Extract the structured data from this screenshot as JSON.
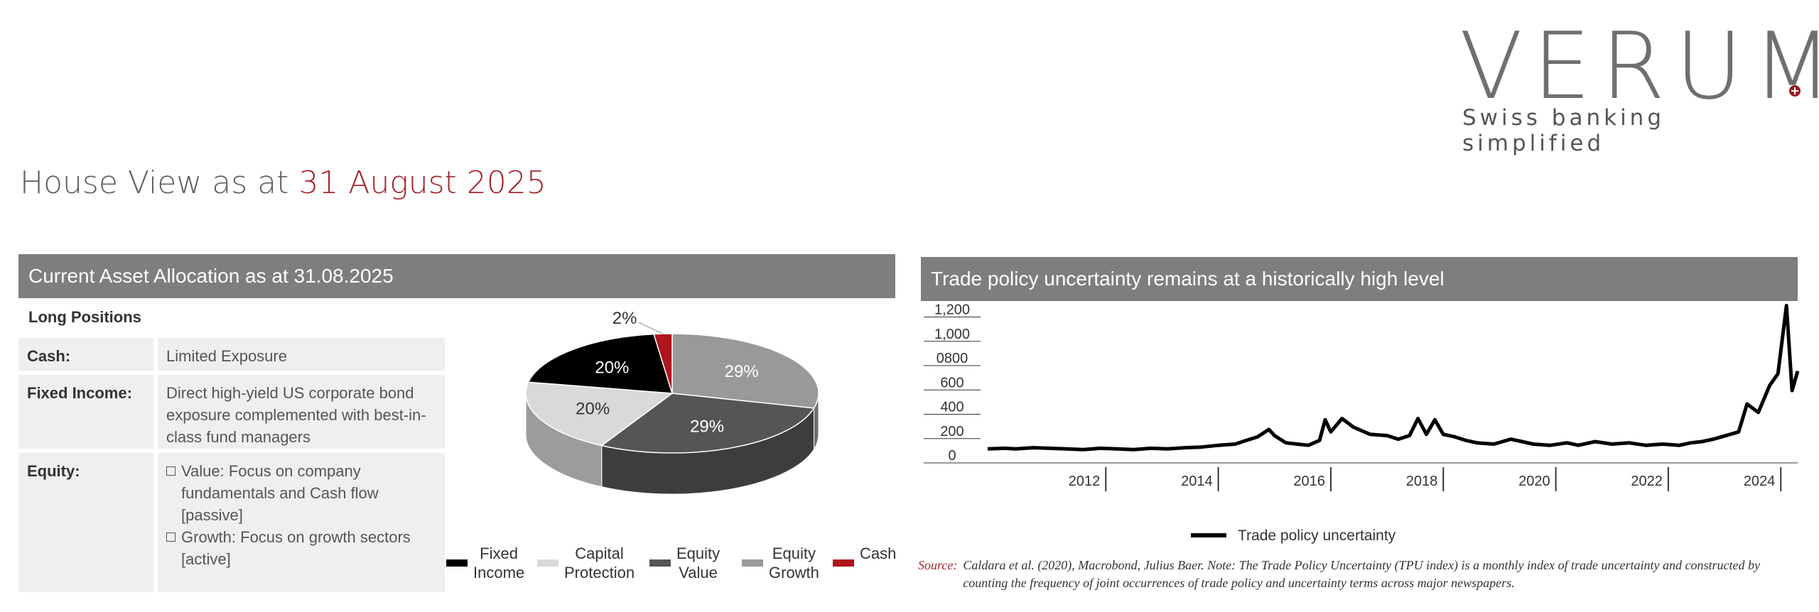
{
  "logo": {
    "word": "VERUM",
    "tagline": "Swiss banking simplified"
  },
  "page_title": {
    "prefix": "House View as at",
    "date": "31 August 2025"
  },
  "allocation": {
    "header": "Current Asset Allocation as at 31.08.2025",
    "long_positions_label": "Long Positions",
    "rows": [
      {
        "label": "Cash:",
        "value": "Limited Exposure"
      },
      {
        "label": "Fixed Income:",
        "value": "Direct high-yield US corporate bond exposure complemented with best-in-class fund managers"
      }
    ],
    "equity": {
      "label": "Equity:",
      "items": [
        "Value: Focus on company fundamentals and Cash flow [passive]",
        "Growth: Focus on growth sectors [active]"
      ]
    }
  },
  "pie_chart": {
    "chart_data": {
      "type": "pie",
      "slices": [
        {
          "name": "Fixed Income",
          "value": 20,
          "label": "20%",
          "color": "#000000"
        },
        {
          "name": "Capital Protection",
          "value": 20,
          "label": "20%",
          "color": "#d9d9d9"
        },
        {
          "name": "Equity Value",
          "value": 29,
          "label": "29%",
          "color": "#555555"
        },
        {
          "name": "Equity Growth",
          "value": 29,
          "label": "29%",
          "color": "#999999"
        },
        {
          "name": "Cash",
          "value": 2,
          "label": "2%",
          "color": "#b0141c"
        }
      ],
      "legend_position": "bottom"
    },
    "legend": [
      {
        "label": "Fixed\nIncome",
        "color": "#000000"
      },
      {
        "label": "Capital\nProtection",
        "color": "#d9d9d9"
      },
      {
        "label": "Equity\nValue",
        "color": "#555555"
      },
      {
        "label": "Equity\nGrowth",
        "color": "#999999"
      },
      {
        "label": "Cash",
        "color": "#b0141c"
      }
    ]
  },
  "tpu_chart": {
    "header": "Trade policy uncertainty remains at a historically high level",
    "legend_label": "Trade policy uncertainty",
    "source_label": "Source:",
    "source_text": "Caldara et al. (2020), Macrobond, Julius Baer. Note: The Trade Policy Uncertainty (TPU index) is a monthly index of trade uncertainty and constructed by counting the frequency of joint occurrences of trade policy and uncertainty terms across major newspapers.",
    "chart_data": {
      "type": "line",
      "y_tick_labels": [
        "0",
        "200",
        "400",
        "600",
        "0800",
        "1,000",
        "1,200"
      ],
      "y_ticks": [
        0,
        200,
        400,
        600,
        800,
        1000,
        1200
      ],
      "x_tick_labels": [
        "2012",
        "2014",
        "2016",
        "2018",
        "2020",
        "2022",
        "2024"
      ],
      "x_ticks": [
        2012,
        2014,
        2016,
        2018,
        2020,
        2022,
        2024
      ],
      "xlim": [
        2010.5,
        2024.9
      ],
      "ylim": [
        0,
        1250
      ],
      "grid": false,
      "legend_position": "bottom",
      "series": [
        {
          "name": "Trade policy uncertainty",
          "color": "#000000",
          "x": [
            2010.5,
            2010.8,
            2011.0,
            2011.3,
            2011.6,
            2011.9,
            2012.2,
            2012.5,
            2012.8,
            2013.1,
            2013.4,
            2013.7,
            2014.0,
            2014.3,
            2014.6,
            2014.9,
            2015.1,
            2015.3,
            2015.5,
            2015.6,
            2015.8,
            2016.0,
            2016.2,
            2016.4,
            2016.5,
            2016.6,
            2016.8,
            2017.0,
            2017.3,
            2017.6,
            2017.8,
            2018.0,
            2018.15,
            2018.3,
            2018.45,
            2018.6,
            2018.8,
            2019.0,
            2019.2,
            2019.5,
            2019.8,
            2020.0,
            2020.2,
            2020.5,
            2020.8,
            2021.0,
            2021.3,
            2021.6,
            2021.9,
            2022.2,
            2022.5,
            2022.8,
            2023.0,
            2023.2,
            2023.4,
            2023.55,
            2023.7,
            2023.85,
            2024.0,
            2024.2,
            2024.4,
            2024.55,
            2024.7,
            2024.8,
            2024.9
          ],
          "values": [
            80,
            85,
            80,
            90,
            85,
            80,
            75,
            85,
            80,
            75,
            85,
            80,
            90,
            95,
            110,
            120,
            150,
            180,
            240,
            190,
            130,
            120,
            110,
            150,
            320,
            220,
            330,
            260,
            200,
            190,
            160,
            190,
            330,
            200,
            320,
            200,
            180,
            150,
            130,
            120,
            160,
            140,
            120,
            110,
            130,
            110,
            140,
            120,
            130,
            110,
            120,
            110,
            130,
            140,
            160,
            180,
            200,
            220,
            450,
            380,
            600,
            700,
            1260,
            560,
            720
          ]
        }
      ]
    }
  }
}
